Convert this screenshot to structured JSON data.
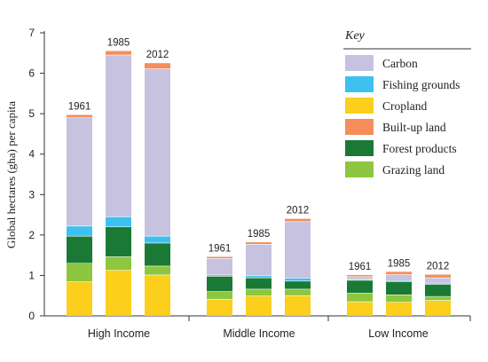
{
  "chart_data": {
    "type": "bar",
    "stacked": true,
    "ylabel": "Global hectares (gha) per capita",
    "ylim": [
      0,
      7
    ],
    "yticks": [
      "0",
      "1",
      "2",
      "3",
      "4",
      "5",
      "6",
      "7"
    ],
    "legend_title": "Key",
    "legend_position": "top-right",
    "groups": [
      {
        "name": "High Income",
        "years": [
          "1961",
          "1985",
          "2012"
        ]
      },
      {
        "name": "Middle Income",
        "years": [
          "1961",
          "1985",
          "2012"
        ]
      },
      {
        "name": "Low Income",
        "years": [
          "1961",
          "1985",
          "2012"
        ]
      }
    ],
    "series": [
      {
        "name": "Cropland",
        "color": "#fbcf1c",
        "values": [
          0.84,
          1.13,
          1.01,
          0.41,
          0.49,
          0.5,
          0.35,
          0.34,
          0.38
        ]
      },
      {
        "name": "Grazing land",
        "color": "#8dc63f",
        "values": [
          0.46,
          0.33,
          0.22,
          0.19,
          0.17,
          0.16,
          0.21,
          0.18,
          0.1
        ]
      },
      {
        "name": "Forest products",
        "color": "#1a7a35",
        "values": [
          0.67,
          0.74,
          0.57,
          0.38,
          0.28,
          0.2,
          0.32,
          0.33,
          0.3
        ]
      },
      {
        "name": "Fishing grounds",
        "color": "#3ec1ee",
        "values": [
          0.25,
          0.25,
          0.17,
          0.03,
          0.05,
          0.07,
          0.02,
          0.02,
          0.03
        ]
      },
      {
        "name": "Carbon",
        "color": "#c6c2e0",
        "values": [
          2.68,
          4.0,
          4.14,
          0.41,
          0.78,
          1.4,
          0.07,
          0.15,
          0.13
        ]
      },
      {
        "name": "Built-up land",
        "color": "#f58e5a",
        "values": [
          0.07,
          0.1,
          0.14,
          0.04,
          0.05,
          0.07,
          0.04,
          0.07,
          0.08
        ]
      }
    ],
    "legend_order": [
      "Carbon",
      "Fishing grounds",
      "Cropland",
      "Built-up land",
      "Forest products",
      "Grazing land"
    ]
  }
}
